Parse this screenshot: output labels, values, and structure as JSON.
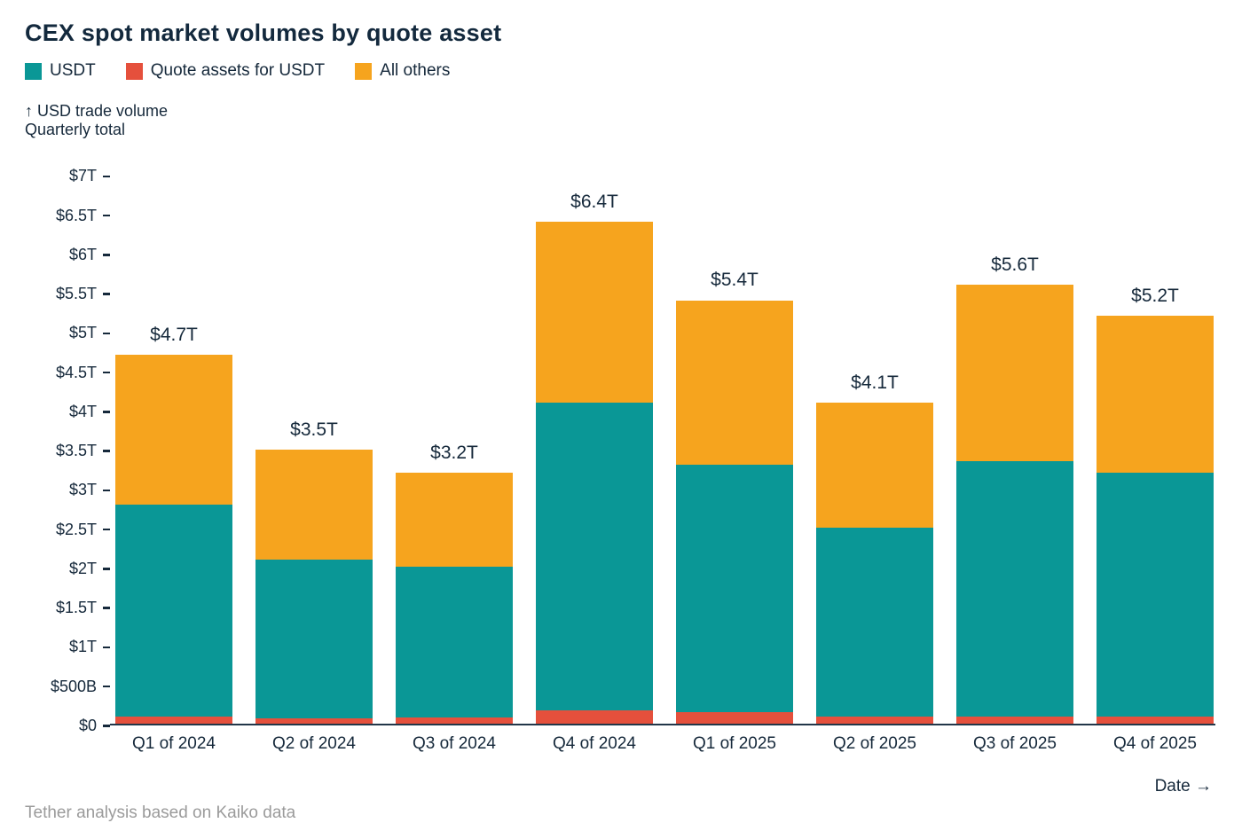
{
  "title": "CEX spot market volumes by quote asset",
  "legend": [
    {
      "label": "USDT",
      "color": "#0a9796"
    },
    {
      "label": "Quote assets for USDT",
      "color": "#e5503c"
    },
    {
      "label": "All others",
      "color": "#f6a41e"
    }
  ],
  "axis": {
    "y_label_line1": "↑ USD trade volume",
    "y_label_line2": "Quarterly total",
    "x_label": "Date →"
  },
  "footer": "Tether analysis based on Kaiko data",
  "chart_data": {
    "type": "bar",
    "stacked": true,
    "stack_order": "bottom-to-top",
    "categories": [
      "Q1 of 2024",
      "Q2 of 2024",
      "Q3 of 2024",
      "Q4 of 2024",
      "Q1 of 2025",
      "Q2 of 2025",
      "Q3 of 2025",
      "Q4 of 2025"
    ],
    "series": [
      {
        "name": "Quote assets for USDT",
        "color": "#e5503c",
        "values": [
          0.1,
          0.07,
          0.08,
          0.17,
          0.15,
          0.1,
          0.1,
          0.1
        ]
      },
      {
        "name": "USDT",
        "color": "#0a9796",
        "values": [
          2.7,
          2.03,
          1.92,
          3.93,
          3.15,
          2.4,
          3.25,
          3.1
        ]
      },
      {
        "name": "All others",
        "color": "#f6a41e",
        "values": [
          1.9,
          1.4,
          1.2,
          2.3,
          2.1,
          1.6,
          2.25,
          2.0
        ]
      }
    ],
    "totals": [
      4.7,
      3.5,
      3.2,
      6.4,
      5.4,
      4.1,
      5.6,
      5.2
    ],
    "totals_labels": [
      "$4.7T",
      "$3.5T",
      "$3.2T",
      "$6.4T",
      "$5.4T",
      "$4.1T",
      "$5.6T",
      "$5.2T"
    ],
    "y_ticks": [
      {
        "label": "$7T",
        "value": 7.0
      },
      {
        "label": "$6.5T",
        "value": 6.5
      },
      {
        "label": "$6T",
        "value": 6.0
      },
      {
        "label": "$5.5T",
        "value": 5.5
      },
      {
        "label": "$5T",
        "value": 5.0
      },
      {
        "label": "$4.5T",
        "value": 4.5
      },
      {
        "label": "$4T",
        "value": 4.0
      },
      {
        "label": "$3.5T",
        "value": 3.5
      },
      {
        "label": "$3T",
        "value": 3.0
      },
      {
        "label": "$2.5T",
        "value": 2.5
      },
      {
        "label": "$2T",
        "value": 2.0
      },
      {
        "label": "$1.5T",
        "value": 1.5
      },
      {
        "label": "$1T",
        "value": 1.0
      },
      {
        "label": "$500B",
        "value": 0.5
      },
      {
        "label": "$0",
        "value": 0.0
      }
    ],
    "ylabel": "USD trade volume, Quarterly total",
    "xlabel": "Date",
    "ylim": [
      0,
      7.3
    ],
    "grid": false,
    "legend_position": "top"
  }
}
